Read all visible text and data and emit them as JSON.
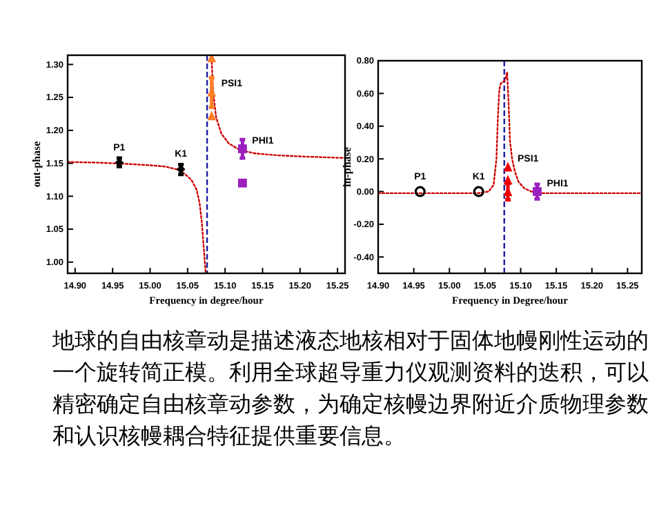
{
  "chart_data": [
    {
      "type": "line",
      "xlabel": "Frequency in degree/hour",
      "ylabel": "out-phase",
      "xlim": [
        14.89,
        15.26
      ],
      "ylim": [
        0.983,
        1.314
      ],
      "xticks": [
        {
          "value": 14.9,
          "label": "14.90"
        },
        {
          "value": 14.95,
          "label": "14.95"
        },
        {
          "value": 15.0,
          "label": "15.00"
        },
        {
          "value": 15.05,
          "label": "15.05"
        },
        {
          "value": 15.1,
          "label": "15.10"
        },
        {
          "value": 15.15,
          "label": "15.15"
        },
        {
          "value": 15.2,
          "label": "15.20"
        },
        {
          "value": 15.25,
          "label": "15.25"
        }
      ],
      "yticks": [
        {
          "value": 1.0,
          "label": "1.00"
        },
        {
          "value": 1.05,
          "label": "1.05"
        },
        {
          "value": 1.1,
          "label": "1.10"
        },
        {
          "value": 1.15,
          "label": "1.15"
        },
        {
          "value": 1.2,
          "label": "1.20"
        },
        {
          "value": 1.25,
          "label": "1.25"
        },
        {
          "value": 1.3,
          "label": "1.30"
        }
      ],
      "grid": false,
      "ref_lines": [
        {
          "axis": "x",
          "value": 15.076,
          "color": "#1a1aa0",
          "line_style": "dashed"
        }
      ],
      "series": [
        {
          "type": "line",
          "color": "#cc0000",
          "line_style": "dotted",
          "marker": "none",
          "x": [
            14.89,
            14.93,
            14.97,
            15.0,
            15.02,
            15.035,
            15.045,
            15.055,
            15.062,
            15.066,
            15.069,
            15.071,
            15.073,
            15.074
          ],
          "values": [
            1.152,
            1.151,
            1.149,
            1.147,
            1.145,
            1.141,
            1.135,
            1.125,
            1.11,
            1.09,
            1.06,
            1.03,
            1.0,
            0.985
          ]
        },
        {
          "type": "line",
          "color": "#cc0000",
          "line_style": "dotted",
          "marker": "none",
          "x": [
            15.082,
            15.084,
            15.088,
            15.095,
            15.105,
            15.12,
            15.14,
            15.17,
            15.21,
            15.26
          ],
          "values": [
            1.31,
            1.26,
            1.22,
            1.195,
            1.18,
            1.17,
            1.165,
            1.162,
            1.16,
            1.158
          ]
        },
        {
          "type": "scatter",
          "color": "#000000",
          "marker": "diamond",
          "x": [
            14.9589,
            15.0411
          ],
          "values": [
            1.151,
            1.141
          ],
          "errors": [
            [
              1.145,
              1.158
            ],
            [
              1.133,
              1.148
            ]
          ]
        },
        {
          "type": "scatter",
          "color": "#ff7f27",
          "marker": "triangle",
          "x": [
            15.0821,
            15.0821,
            15.0821
          ],
          "values": [
            1.31,
            1.258,
            1.222
          ],
          "errors": [
            null,
            [
              1.235,
              1.28
            ],
            null
          ]
        },
        {
          "type": "scatter",
          "color": "#9b1fbf",
          "marker": "square",
          "x": [
            15.1232,
            15.1232
          ],
          "values": [
            1.172,
            1.12
          ],
          "errors": [
            [
              1.158,
              1.186
            ],
            null
          ]
        }
      ],
      "annotations": [
        {
          "text": "P1",
          "x": 14.9589,
          "y": 1.151
        },
        {
          "text": "K1",
          "x": 15.0411,
          "y": 1.141
        },
        {
          "text": "PSI1",
          "x": 15.0821,
          "y": 1.258
        },
        {
          "text": "PHI1",
          "x": 15.1232,
          "y": 1.172
        }
      ]
    },
    {
      "type": "line",
      "xlabel": "Frequency in Degree/hour",
      "ylabel": "in-phase",
      "xlim": [
        14.9,
        15.27
      ],
      "ylim": [
        -0.5,
        0.8
      ],
      "xticks": [
        {
          "value": 14.9,
          "label": "14.90"
        },
        {
          "value": 14.95,
          "label": "14.95"
        },
        {
          "value": 15.0,
          "label": "15.00"
        },
        {
          "value": 15.05,
          "label": "15.05"
        },
        {
          "value": 15.1,
          "label": "15.10"
        },
        {
          "value": 15.15,
          "label": "15.15"
        },
        {
          "value": 15.2,
          "label": "15.20"
        },
        {
          "value": 15.25,
          "label": "15.25"
        }
      ],
      "yticks": [
        {
          "value": -0.4,
          "label": "-0.40"
        },
        {
          "value": -0.2,
          "label": "-0.20"
        },
        {
          "value": 0.0,
          "label": "0.00"
        },
        {
          "value": 0.2,
          "label": "0.20"
        },
        {
          "value": 0.4,
          "label": "0.40"
        },
        {
          "value": 0.6,
          "label": "0.60"
        },
        {
          "value": 0.8,
          "label": "0.80"
        }
      ],
      "grid": false,
      "ref_lines": [
        {
          "axis": "x",
          "value": 15.077,
          "color": "#1a1aa0",
          "line_style": "dashed"
        }
      ],
      "series": [
        {
          "type": "line",
          "color": "#cc0000",
          "line_style": "dotted",
          "marker": "none",
          "x": [
            14.9,
            14.95,
            15.0,
            15.04,
            15.055,
            15.062,
            15.066,
            15.068,
            15.07,
            15.072,
            15.075,
            15.078,
            15.081,
            15.083,
            15.085,
            15.088,
            15.092,
            15.097,
            15.105,
            15.115,
            15.13,
            15.17,
            15.22,
            15.27
          ],
          "values": [
            -0.01,
            -0.01,
            -0.01,
            -0.01,
            0.0,
            0.04,
            0.2,
            0.45,
            0.62,
            0.66,
            0.67,
            0.68,
            0.73,
            0.55,
            0.31,
            0.2,
            0.12,
            0.06,
            0.02,
            0.0,
            -0.01,
            -0.01,
            -0.01,
            -0.01
          ]
        },
        {
          "type": "scatter",
          "color": "#000000",
          "marker": "circle",
          "x": [
            14.9589,
            15.0411
          ],
          "values": [
            0.0,
            0.0
          ]
        },
        {
          "type": "scatter",
          "color": "#ee0000",
          "marker": "triangle",
          "x": [
            15.0821,
            15.0821,
            15.0821
          ],
          "values": [
            0.15,
            0.07,
            0.0
          ],
          "errors": [
            null,
            null,
            [
              -0.05,
              0.05
            ]
          ]
        },
        {
          "type": "scatter",
          "color": "#9b1fbf",
          "marker": "square",
          "x": [
            15.1232
          ],
          "values": [
            0.0
          ],
          "errors": [
            [
              -0.045,
              0.045
            ]
          ]
        }
      ],
      "annotations": [
        {
          "text": "P1",
          "x": 14.9589,
          "y": 0.0
        },
        {
          "text": "K1",
          "x": 15.0411,
          "y": 0.0
        },
        {
          "text": "PSI1",
          "x": 15.0821,
          "y": 0.15
        },
        {
          "text": "PHI1",
          "x": 15.1232,
          "y": 0.0
        }
      ]
    },
    {
      "type": "other",
      "annotations": [
        "地球的自由核章动是描述液态地核相对于固体地幔刚性运动的一个旋转简正模。利用全球超导重力仪观测资料的迭积，可以精密确定自由核章动参数，为确定核幔边界附近介质物理参数和认识核幔耦合特征提供重要信息。"
      ]
    }
  ]
}
